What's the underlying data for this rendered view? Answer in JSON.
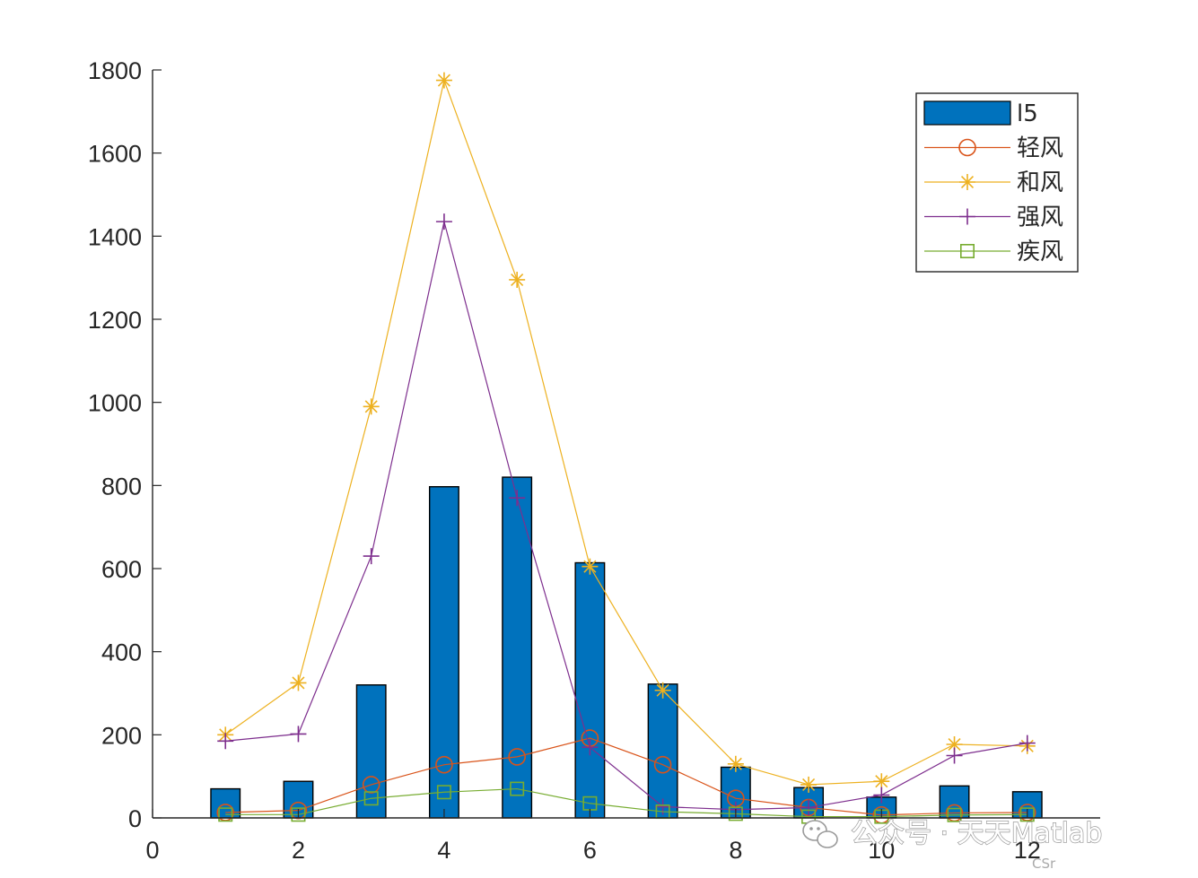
{
  "chart_data": {
    "type": "bar",
    "x": [
      1,
      2,
      3,
      4,
      5,
      6,
      7,
      8,
      9,
      10,
      11,
      12
    ],
    "xlim": [
      0,
      13
    ],
    "ylim": [
      0,
      1800
    ],
    "xticks": [
      "0",
      "2",
      "4",
      "6",
      "8",
      "10",
      "12"
    ],
    "yticks": [
      "0",
      "200",
      "400",
      "600",
      "800",
      "1000",
      "1200",
      "1400",
      "1600",
      "1800"
    ],
    "legend_position": "top-right",
    "bars": {
      "name": "l5",
      "color": "#0072BD",
      "values": [
        70,
        88,
        320,
        797,
        820,
        614,
        322,
        122,
        73,
        50,
        77,
        63
      ]
    },
    "series": [
      {
        "name": "轻风",
        "type": "line",
        "marker": "circle",
        "color": "#D95319",
        "values": [
          13,
          18,
          80,
          128,
          147,
          192,
          128,
          47,
          25,
          7,
          12,
          13
        ]
      },
      {
        "name": "和风",
        "type": "line",
        "marker": "asterisk",
        "color": "#EDB120",
        "values": [
          200,
          325,
          990,
          1775,
          1295,
          605,
          307,
          130,
          80,
          88,
          177,
          173
        ]
      },
      {
        "name": "强风",
        "type": "line",
        "marker": "plus",
        "color": "#7E2F8E",
        "values": [
          185,
          202,
          630,
          1435,
          770,
          170,
          27,
          20,
          25,
          55,
          150,
          180
        ]
      },
      {
        "name": "疾风",
        "type": "line",
        "marker": "square",
        "color": "#77AC30",
        "values": [
          8,
          8,
          47,
          62,
          70,
          35,
          15,
          10,
          3,
          3,
          7,
          8
        ]
      }
    ]
  },
  "watermark": {
    "icon": "wechat-icon",
    "text": "公众号 · 天天Matlab",
    "fragment": "CSr"
  }
}
